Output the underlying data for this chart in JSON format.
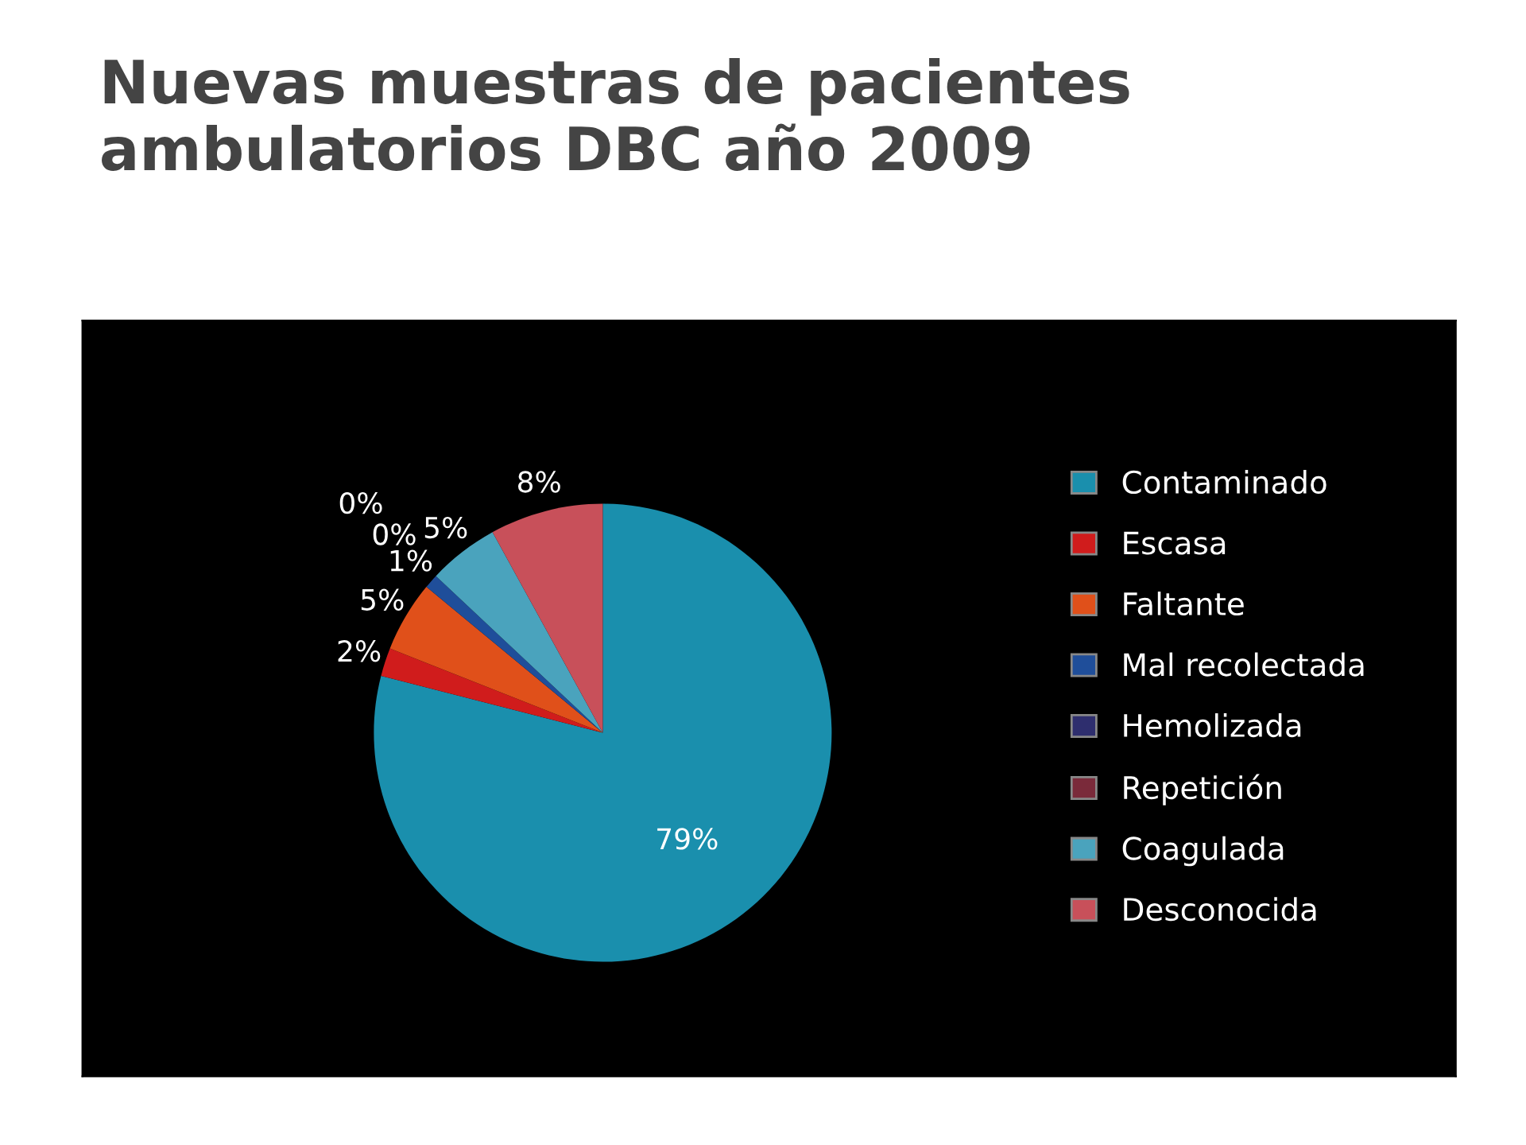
{
  "chart_data": {
    "type": "pie",
    "title": "Nuevas muestras de pacientes ambulatorios DBC año 2009",
    "categories": [
      "Contaminado",
      "Escasa",
      "Faltante",
      "Mal recolectada",
      "Hemolizada",
      "Repetición",
      "Coagulada",
      "Desconocida"
    ],
    "values": [
      79,
      2,
      5,
      1,
      0,
      0,
      5,
      8
    ],
    "value_labels": [
      "79%",
      "2%",
      "5%",
      "1%",
      "0%",
      "0%",
      "5%",
      "8%"
    ],
    "colors": [
      "#1a8fad",
      "#d01c1c",
      "#e0501a",
      "#1f4e9a",
      "#2e2e6e",
      "#7a2a3a",
      "#4aa3bd",
      "#c8505a"
    ],
    "legend": "right"
  }
}
